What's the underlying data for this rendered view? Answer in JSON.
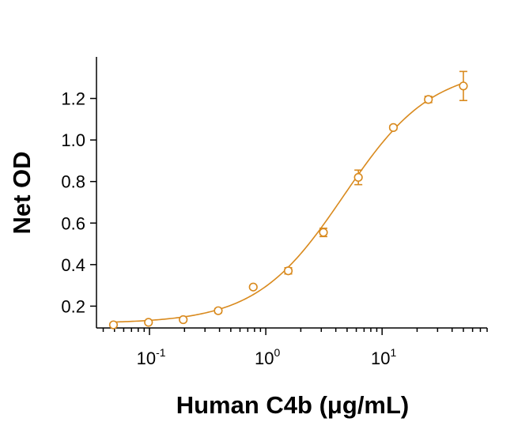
{
  "chart_data": {
    "type": "scatter",
    "title": "",
    "xlabel": "Human C4b (μg/mL)",
    "ylabel": "Net OD",
    "x_scale": "log",
    "xlim": [
      0.035,
      80
    ],
    "ylim": [
      0.095,
      1.4
    ],
    "y_ticks": [
      0.2,
      0.4,
      0.6,
      0.8,
      1.0,
      1.2
    ],
    "y_tick_labels": [
      "0.2",
      "0.4",
      "0.6",
      "0.8",
      "1.0",
      "1.2"
    ],
    "x_major_ticks": [
      {
        "value": 0.1,
        "base": "10",
        "exp": "-1"
      },
      {
        "value": 1,
        "base": "10",
        "exp": "0"
      },
      {
        "value": 10,
        "base": "10",
        "exp": "1"
      }
    ],
    "grid": false,
    "color": "#D98A1E",
    "points": [
      {
        "x": 0.049,
        "y": 0.11,
        "err": 0.008
      },
      {
        "x": 0.098,
        "y": 0.122,
        "err": 0.006
      },
      {
        "x": 0.195,
        "y": 0.135,
        "err": 0.007
      },
      {
        "x": 0.39,
        "y": 0.178,
        "err": 0.01
      },
      {
        "x": 0.78,
        "y": 0.292,
        "err": 0.006
      },
      {
        "x": 1.56,
        "y": 0.37,
        "err": 0.015
      },
      {
        "x": 3.13,
        "y": 0.555,
        "err": 0.02
      },
      {
        "x": 6.25,
        "y": 0.82,
        "err": 0.035
      },
      {
        "x": 12.5,
        "y": 1.06,
        "err": 0.01
      },
      {
        "x": 25,
        "y": 1.195,
        "err": 0.015
      },
      {
        "x": 50,
        "y": 1.26,
        "err": 0.07
      }
    ],
    "fit": {
      "model": "4PL",
      "bottom": 0.117,
      "top": 1.35,
      "ec50": 4.7,
      "hill": 1.15
    }
  }
}
